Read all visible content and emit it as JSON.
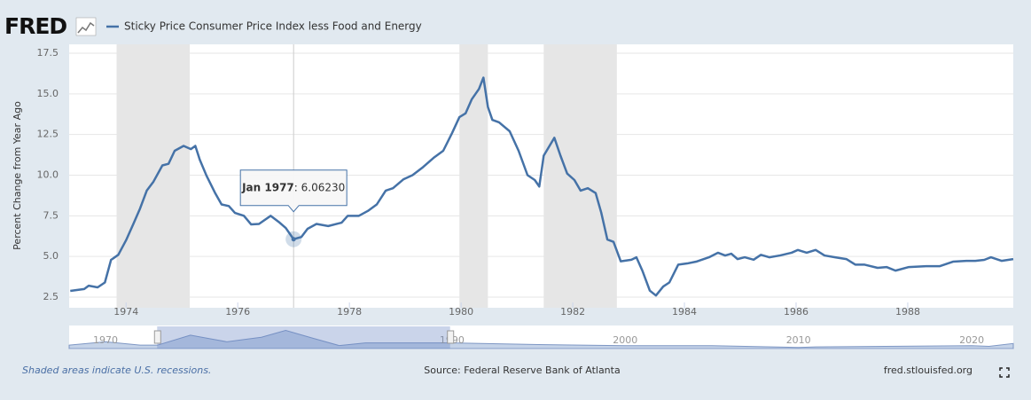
{
  "header": {
    "logo": "FRED"
  },
  "chart_data": {
    "type": "line",
    "ylabel": "Percent Change from Year Ago",
    "x": [
      1973.0,
      1973.25,
      1973.33,
      1973.49,
      1973.62,
      1973.73,
      1973.86,
      1974.0,
      1974.13,
      1974.25,
      1974.37,
      1974.49,
      1974.65,
      1974.76,
      1974.87,
      1975.03,
      1975.16,
      1975.24,
      1975.32,
      1975.44,
      1975.59,
      1975.71,
      1975.84,
      1975.95,
      1976.11,
      1976.24,
      1976.38,
      1976.59,
      1976.75,
      1976.86,
      1977.0,
      1977.14,
      1977.25,
      1977.41,
      1977.62,
      1977.86,
      1977.97,
      1978.17,
      1978.33,
      1978.49,
      1978.65,
      1978.78,
      1978.97,
      1979.13,
      1979.32,
      1979.52,
      1979.68,
      1979.84,
      1979.97,
      1980.08,
      1980.19,
      1980.32,
      1980.4,
      1980.48,
      1980.56,
      1980.68,
      1980.87,
      1981.03,
      1981.19,
      1981.32,
      1981.4,
      1981.48,
      1981.67,
      1981.78,
      1981.9,
      1982.03,
      1982.14,
      1982.27,
      1982.41,
      1982.51,
      1982.62,
      1982.73,
      1982.86,
      1983.05,
      1983.14,
      1983.25,
      1983.38,
      1983.49,
      1983.62,
      1983.73,
      1983.89,
      1984.05,
      1984.21,
      1984.44,
      1984.6,
      1984.73,
      1984.84,
      1984.95,
      1985.08,
      1985.24,
      1985.37,
      1985.52,
      1985.71,
      1985.92,
      1986.03,
      1986.19,
      1986.35,
      1986.51,
      1986.7,
      1986.9,
      1987.06,
      1987.22,
      1987.46,
      1987.62,
      1987.78,
      1988.02,
      1988.33,
      1988.57,
      1988.81,
      1989.05,
      1989.21,
      1989.37,
      1989.49,
      1989.68,
      1989.89
    ],
    "series": [
      {
        "name": "Sticky Price Consumer Price Index less Food and Energy",
        "color": "#4572a7",
        "values": [
          2.88,
          3.0,
          3.2,
          3.1,
          3.4,
          4.79,
          5.1,
          6.0,
          7.0,
          7.95,
          9.05,
          9.6,
          10.6,
          10.7,
          11.5,
          11.8,
          11.6,
          11.8,
          10.95,
          9.97,
          8.93,
          8.2,
          8.1,
          7.68,
          7.5,
          6.97,
          7.0,
          7.5,
          7.08,
          6.75,
          6.06,
          6.2,
          6.7,
          7.0,
          6.87,
          7.08,
          7.5,
          7.5,
          7.8,
          8.2,
          9.05,
          9.2,
          9.75,
          10.0,
          10.5,
          11.1,
          11.5,
          12.6,
          13.57,
          13.8,
          14.66,
          15.3,
          16.0,
          14.2,
          13.4,
          13.25,
          12.7,
          11.5,
          10.0,
          9.7,
          9.3,
          11.2,
          12.3,
          11.2,
          10.1,
          9.7,
          9.05,
          9.2,
          8.9,
          7.7,
          6.04,
          5.9,
          4.7,
          4.8,
          4.95,
          4.1,
          2.9,
          2.6,
          3.15,
          3.4,
          4.5,
          4.57,
          4.68,
          4.95,
          5.23,
          5.06,
          5.17,
          4.84,
          4.95,
          4.8,
          5.1,
          4.95,
          5.06,
          5.23,
          5.4,
          5.23,
          5.4,
          5.06,
          4.95,
          4.84,
          4.5,
          4.5,
          4.3,
          4.35,
          4.13,
          4.35,
          4.4,
          4.4,
          4.68,
          4.73,
          4.73,
          4.79,
          4.95,
          4.73,
          4.84
        ]
      }
    ],
    "xlim": [
      1972.98,
      1989.89
    ],
    "ylim": [
      2.5,
      17.5
    ],
    "xticks": [
      1974,
      1976,
      1978,
      1980,
      1982,
      1984,
      1986,
      1988
    ],
    "yticks": [
      2.5,
      {
        "value": 5,
        "label": "5.0"
      },
      7.5,
      {
        "value": 10,
        "label": "10.0"
      },
      12.5,
      {
        "value": 15,
        "label": "15.0"
      },
      17.5
    ],
    "grid": true,
    "recessions": [
      [
        1973.83,
        1975.14
      ],
      [
        1979.97,
        1980.48
      ],
      [
        1981.48,
        1982.79
      ]
    ],
    "tooltip": {
      "x": 1977.0,
      "label": "Jan 1977",
      "value": 6.0623,
      "value_label": "6.06230"
    }
  },
  "navigator": {
    "xlim": [
      1967.9,
      2022.4
    ],
    "ylim": [
      0,
      18
    ],
    "xticks": [
      1970,
      1990,
      2000,
      2010,
      2020
    ],
    "x": [
      1967.9,
      1970,
      1972,
      1973,
      1974.9,
      1977,
      1979,
      1980.4,
      1982,
      1983.5,
      1985,
      1990,
      1995,
      2000,
      2005,
      2010,
      2011,
      2015,
      2020,
      2021,
      2022.4
    ],
    "values": [
      3,
      6,
      3,
      3,
      11.8,
      6,
      10,
      16,
      9,
      2.6,
      5,
      5,
      3.5,
      2.5,
      2.5,
      1,
      1.5,
      2,
      2.5,
      2,
      4.5
    ]
  },
  "footer": {
    "note": "Shaded areas indicate U.S. recessions.",
    "source": "Source: Federal Reserve Bank of Atlanta",
    "url": "fred.stlouisfed.org"
  }
}
